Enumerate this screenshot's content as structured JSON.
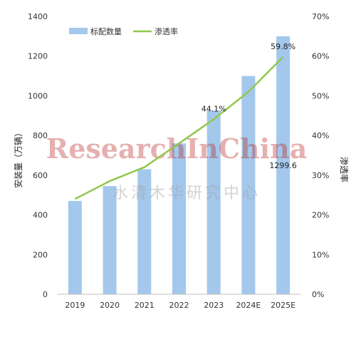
{
  "chart_data": {
    "type": "bar",
    "categories": [
      "2019",
      "2020",
      "2021",
      "2022",
      "2023",
      "2024E",
      "2025E"
    ],
    "series": [
      {
        "name": "标配数量",
        "type": "bar",
        "axis": "left",
        "values": [
          470,
          545,
          630,
          760,
          925,
          1100,
          1299.6
        ]
      },
      {
        "name": "渗透率",
        "type": "line",
        "axis": "right",
        "values": [
          24,
          28.5,
          32,
          38,
          44.1,
          51,
          59.8
        ]
      }
    ],
    "ylabel": "安装量（万辆）",
    "y2label": "渗透率",
    "ylim": [
      0,
      1400
    ],
    "yticks": [
      "0",
      "200",
      "400",
      "600",
      "800",
      "1000",
      "1200",
      "1400"
    ],
    "y2lim": [
      0,
      70
    ],
    "y2ticks": [
      "0%",
      "10%",
      "20%",
      "30%",
      "40%",
      "50%",
      "60%",
      "70%"
    ],
    "data_labels": [
      {
        "series": 1,
        "index": 4,
        "text": "44.1%"
      },
      {
        "series": 1,
        "index": 6,
        "text": "59.8%"
      },
      {
        "series": 0,
        "index": 6,
        "text": "1299.6"
      }
    ],
    "legend": "top-left",
    "grid": false,
    "colors": {
      "bar": "#a4c8ec",
      "line": "#92c84e"
    },
    "watermark": [
      "ResearchInChina",
      "水清木华研究中心"
    ]
  }
}
